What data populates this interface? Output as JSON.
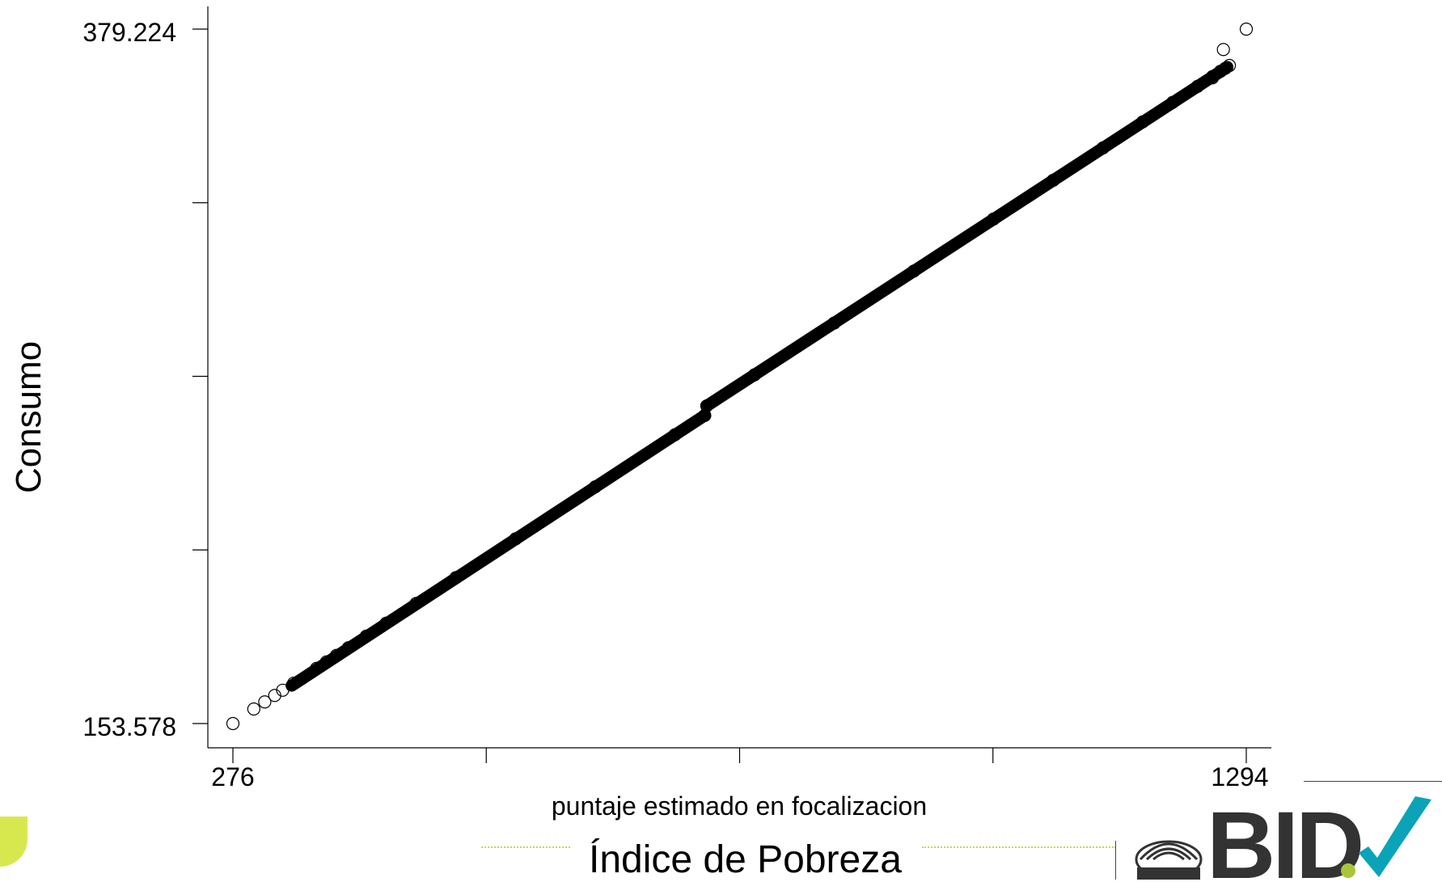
{
  "chart_data": {
    "type": "scatter",
    "title": "",
    "xlabel": "puntaje estimado en focalizacion",
    "ylabel": "Consumo",
    "x_ticks": [
      276,
      1294
    ],
    "x_tick_labels": [
      "276",
      "1294"
    ],
    "y_ticks": [
      153.578,
      379.224
    ],
    "y_tick_labels": [
      "153.578",
      "379.224"
    ],
    "xlim": [
      276,
      1294
    ],
    "ylim": [
      153.578,
      379.224
    ],
    "grid": false,
    "legend": "none",
    "marker": "open-circle",
    "series": [
      {
        "points": [
          [
            276,
            153.578
          ],
          [
            297,
            158.3
          ],
          [
            308,
            160.6
          ],
          [
            318,
            162.7
          ],
          [
            326,
            164.4
          ],
          [
            337,
            166.7
          ],
          [
            360,
            171.5
          ],
          [
            370,
            173.6
          ],
          [
            380,
            175.7
          ],
          [
            392,
            178.2
          ],
          [
            410,
            182.0
          ],
          [
            430,
            186.2
          ],
          [
            460,
            192.6
          ],
          [
            500,
            201.0
          ],
          [
            560,
            213.6
          ],
          [
            640,
            230.5
          ],
          [
            720,
            247.4
          ],
          [
            750,
            253.7
          ],
          [
            752,
            256.8
          ],
          [
            800,
            266.9
          ],
          [
            880,
            283.7
          ],
          [
            960,
            300.6
          ],
          [
            1040,
            317.5
          ],
          [
            1100,
            330.1
          ],
          [
            1150,
            340.6
          ],
          [
            1190,
            349.1
          ],
          [
            1220,
            355.4
          ],
          [
            1245,
            360.6
          ],
          [
            1260,
            363.8
          ],
          [
            1268,
            365.5
          ],
          [
            1273,
            366.5
          ],
          [
            1277,
            367.4
          ],
          [
            1260,
            363.4
          ],
          [
            1294,
            379.224
          ],
          [
            1271,
            372.6
          ]
        ]
      }
    ],
    "dense_band": [
      {
        "x": [
          335,
          750
        ],
        "y": [
          165.9,
          253.7
        ]
      },
      {
        "x": [
          752,
          1275
        ],
        "y": [
          256.8,
          366.9
        ]
      }
    ]
  },
  "footer": {
    "title": "Índice de Pobreza"
  },
  "logo": {
    "text": "BID",
    "check_color": "#0aa3b8",
    "dot_color": "#a8c63a",
    "text_color": "#333333"
  },
  "colors": {
    "accent_lime": "#d6e84e",
    "marker": "#000000"
  }
}
